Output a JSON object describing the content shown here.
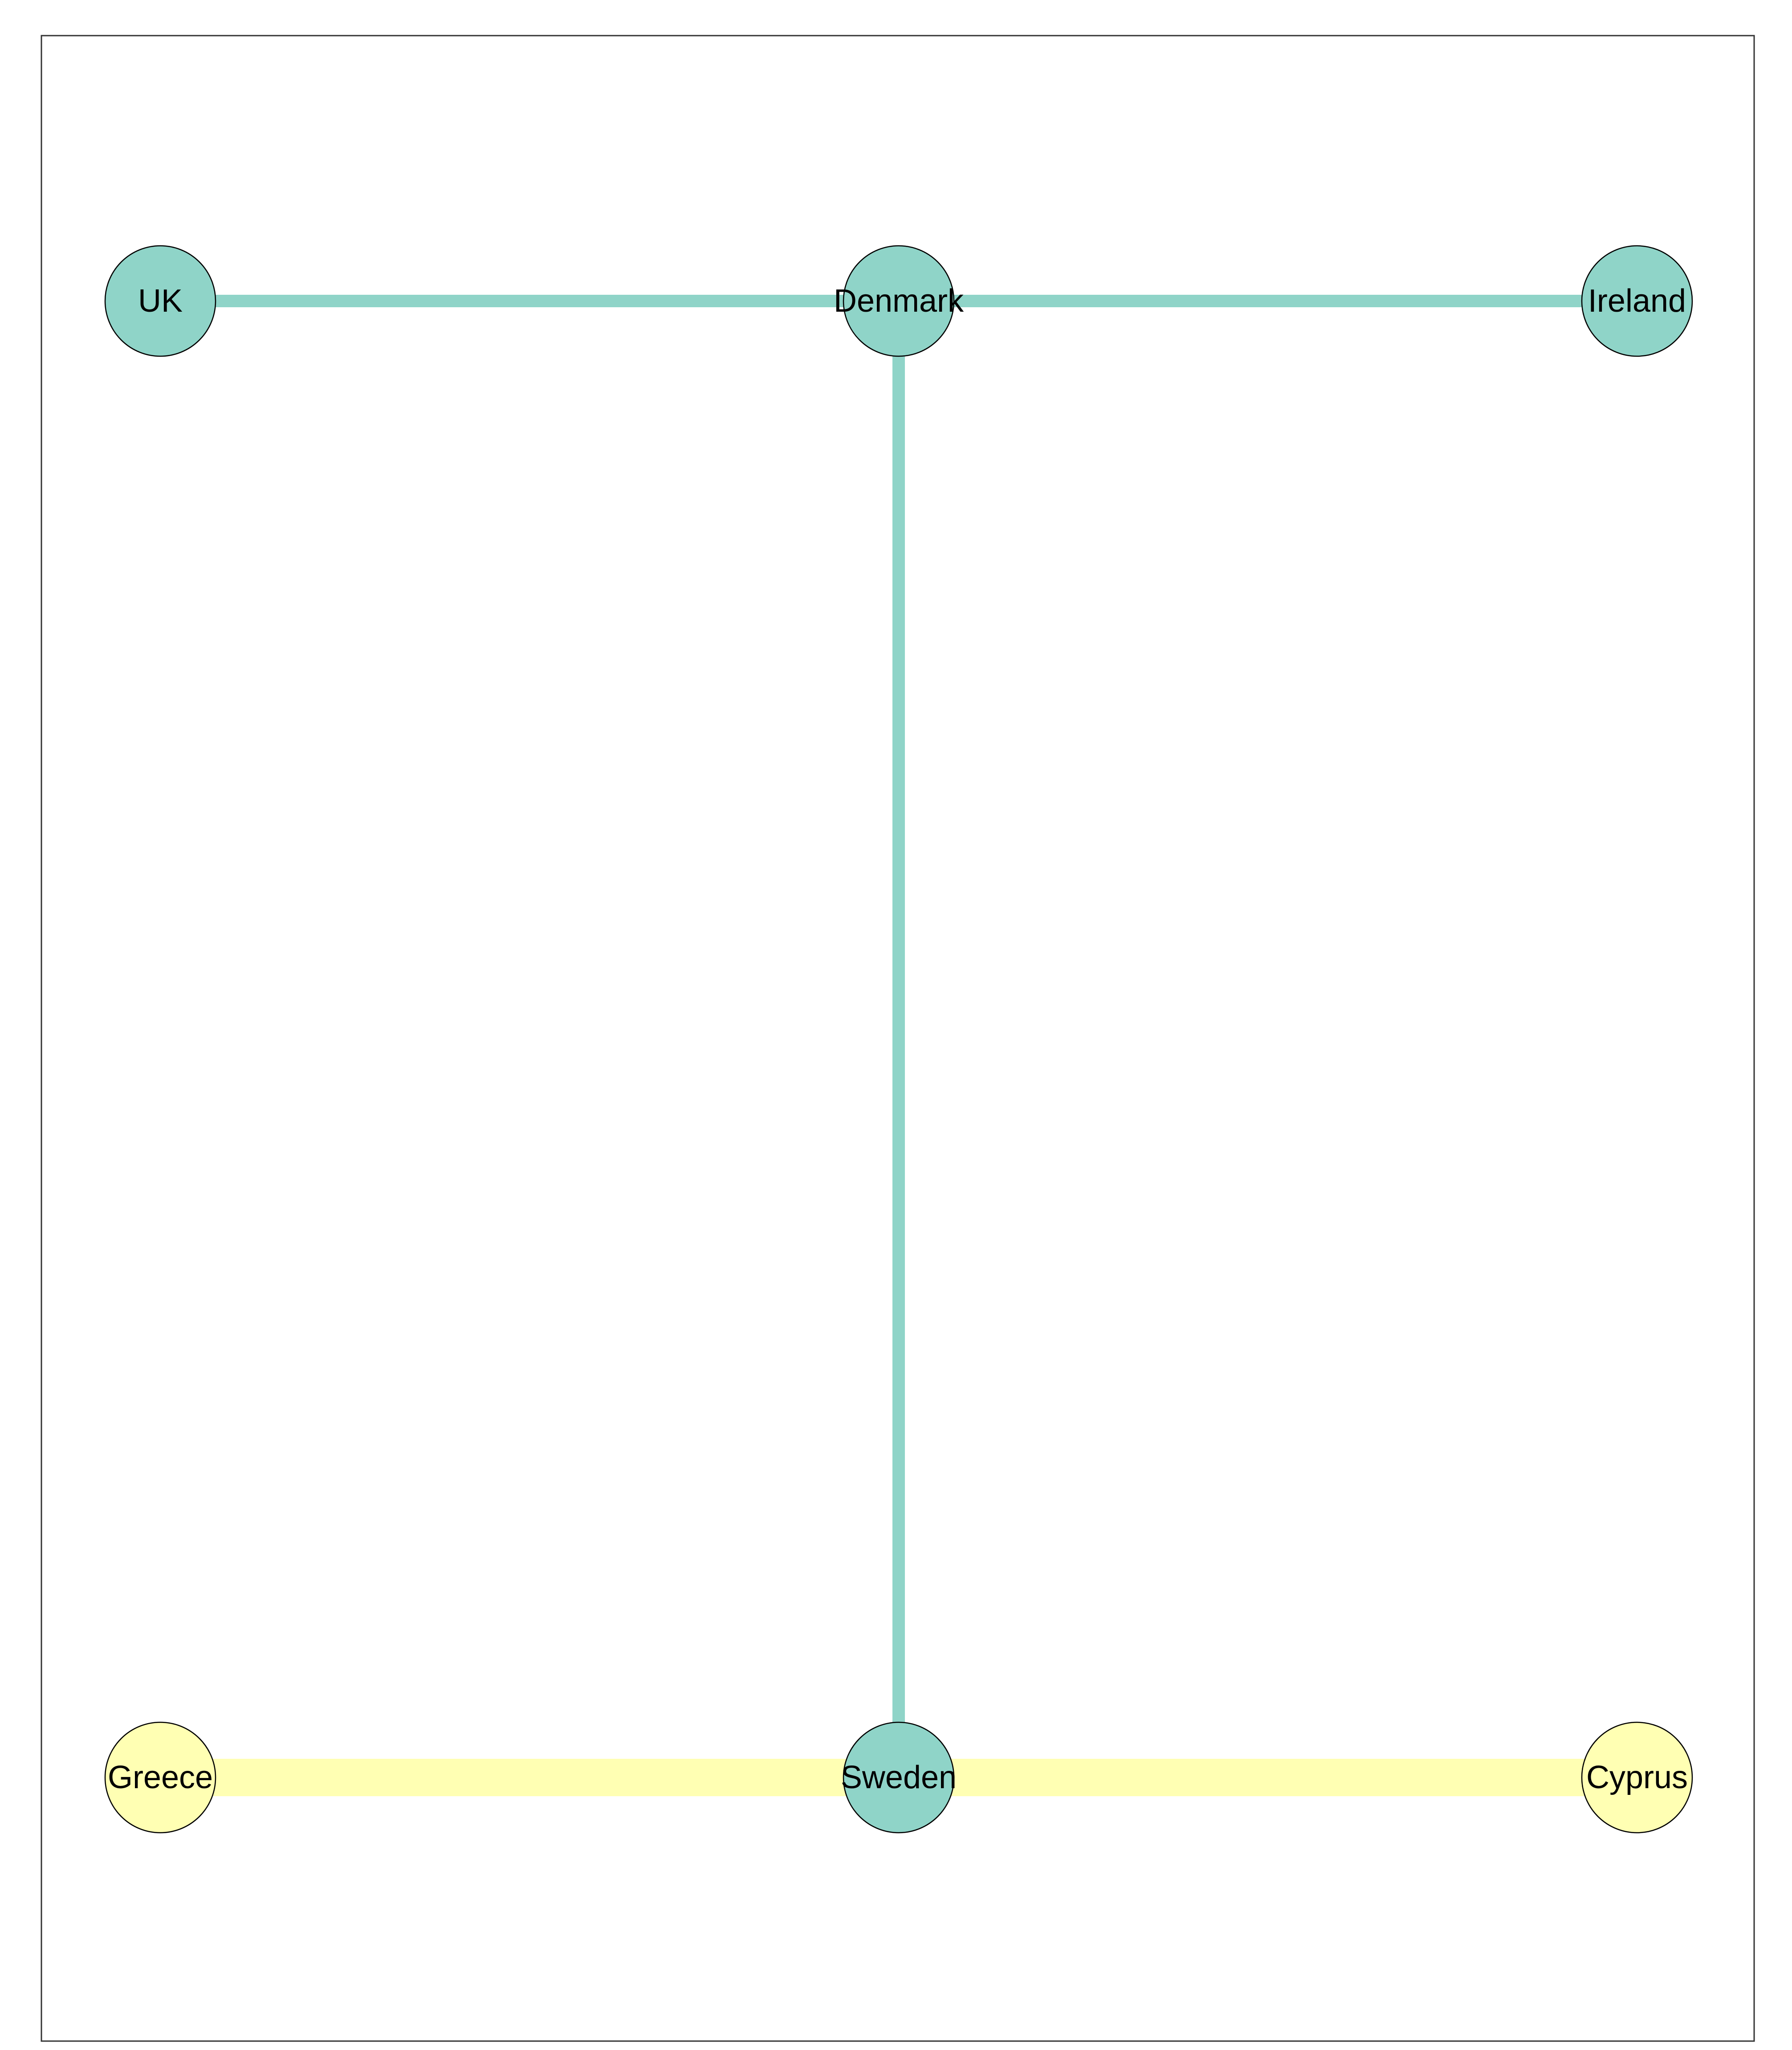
{
  "diagram": {
    "type": "network-graph",
    "nodes": [
      {
        "id": "uk",
        "label": "UK",
        "color": "#8fd4c8"
      },
      {
        "id": "denmark",
        "label": "Denmark",
        "color": "#8fd4c8"
      },
      {
        "id": "ireland",
        "label": "Ireland",
        "color": "#8fd4c8"
      },
      {
        "id": "greece",
        "label": "Greece",
        "color": "#ffffb3"
      },
      {
        "id": "sweden",
        "label": "Sweden",
        "color": "#8fd4c8"
      },
      {
        "id": "cyprus",
        "label": "Cyprus",
        "color": "#ffffb3"
      }
    ],
    "edges": [
      {
        "source": "uk",
        "target": "denmark",
        "color": "#8fd4c8",
        "weight": 1
      },
      {
        "source": "denmark",
        "target": "ireland",
        "color": "#8fd4c8",
        "weight": 1
      },
      {
        "source": "denmark",
        "target": "sweden",
        "color": "#8fd4c8",
        "weight": 1
      },
      {
        "source": "greece",
        "target": "sweden",
        "color": "#ffffb3",
        "weight": 3
      },
      {
        "source": "sweden",
        "target": "cyprus",
        "color": "#ffffb3",
        "weight": 3
      }
    ]
  }
}
